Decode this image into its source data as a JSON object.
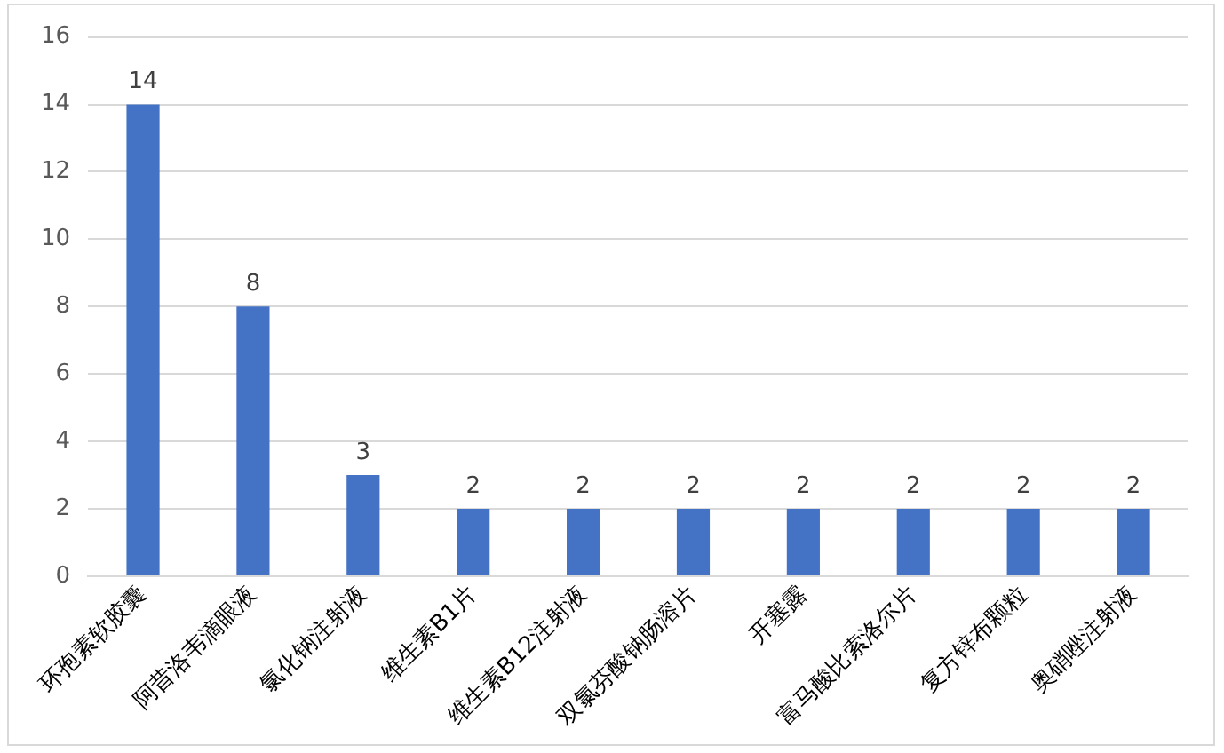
{
  "chart_data": {
    "type": "bar",
    "categories": [
      "环孢素软胶囊",
      "阿昔洛韦滴眼液",
      "氯化钠注射液",
      "维生素B1片",
      "维生素B12注射液",
      "双氯芬酸钠肠溶片",
      "开塞露",
      "富马酸比索洛尔片",
      "复方锌布颗粒",
      "奥硝唑注射液"
    ],
    "values": [
      14,
      8,
      3,
      2,
      2,
      2,
      2,
      2,
      2,
      2
    ],
    "color": "#4472c4",
    "ylim": [
      0,
      16
    ],
    "yticks": [
      0,
      2,
      4,
      6,
      8,
      10,
      12,
      14,
      16
    ],
    "grid": "y",
    "data_labels": true,
    "legend": false
  }
}
